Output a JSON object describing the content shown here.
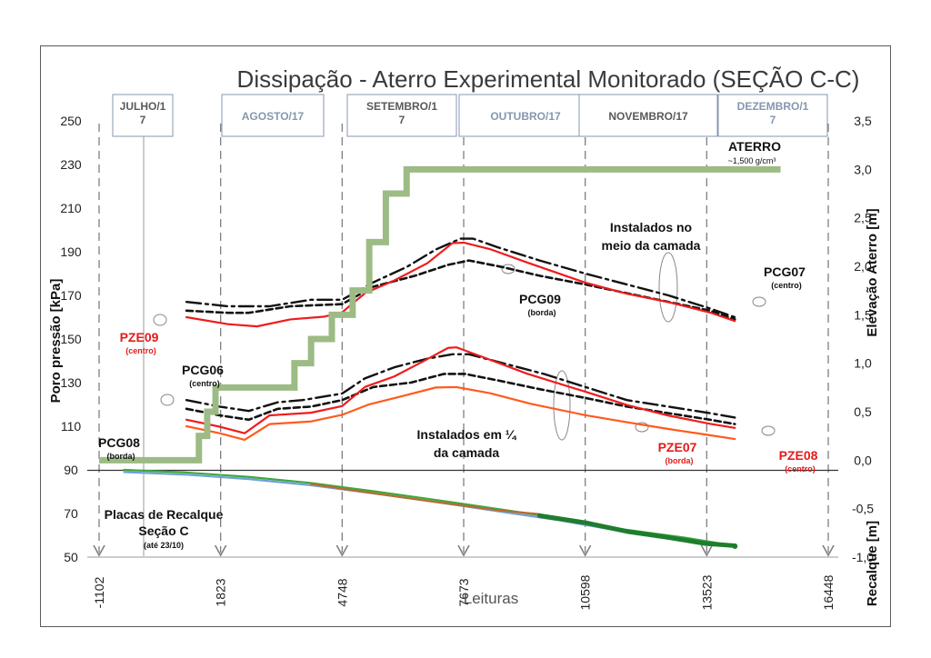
{
  "title": "Dissipação - Aterro Experimental Monitorado (SEÇÃO C-C)",
  "chart_data": {
    "type": "line",
    "title": "Dissipação - Aterro Experimental Monitorado (SEÇÃO C-C)",
    "xlabel": "Leituras",
    "ylabel_left": "Poro pressão [kPa]",
    "ylabel_right_top": "Elevação Aterro [m]",
    "ylabel_right_bottom": "Recalque [m]",
    "xlim": [
      -1102,
      16448
    ],
    "ylim_left": [
      50,
      250
    ],
    "ylim_right": [
      -1.0,
      3.5
    ],
    "x_ticks": [
      "-1102",
      "1823",
      "4748",
      "7673",
      "10598",
      "13523",
      "16448"
    ],
    "x_tick_values": [
      -1102,
      1823,
      4748,
      7673,
      10598,
      13523,
      16448
    ],
    "y_ticks_left": [
      "250",
      "230",
      "210",
      "190",
      "170",
      "150",
      "130",
      "110",
      "90",
      "70",
      "50"
    ],
    "y_ticks_left_values": [
      250,
      230,
      210,
      190,
      170,
      150,
      130,
      110,
      90,
      70,
      50
    ],
    "y_ticks_right": [
      "3,5",
      "3,0",
      "2,5",
      "2,0",
      "1,5",
      "1,0",
      "0,5",
      "0,0",
      "-0,5",
      "-1,0"
    ],
    "y_ticks_right_values": [
      3.5,
      3.0,
      2.5,
      2.0,
      1.5,
      1.0,
      0.5,
      0.0,
      -0.5,
      -1.0
    ],
    "grid": false,
    "months": [
      {
        "label": "JULHO/1\n7",
        "color": "#595959"
      },
      {
        "label": "AGOSTO/17",
        "color": "#8497b0"
      },
      {
        "label": "SETEMBRO/1\n7",
        "color": "#595959"
      },
      {
        "label": "OUTUBRO/17",
        "color": "#8497b0"
      },
      {
        "label": "NOVEMBRO/17",
        "color": "#595959"
      },
      {
        "label": "DEZEMBRO/1\n7",
        "color": "#8497b0"
      }
    ],
    "series": [
      {
        "name": "PCG07",
        "axis": "left",
        "style": "dashdot",
        "color": "#111111",
        "x": [
          1000,
          2000,
          3000,
          4000,
          4748,
          5500,
          6300,
          7000,
          7600,
          7900,
          8500,
          9500,
          10598,
          11600,
          12600,
          13600,
          14200
        ],
        "y": [
          167,
          165,
          165,
          168,
          168,
          176,
          183,
          191,
          196,
          196,
          192,
          186,
          180,
          175,
          170,
          164,
          160
        ]
      },
      {
        "name": "PCG09",
        "axis": "left",
        "style": "dashed",
        "color": "#111111",
        "x": [
          1000,
          2000,
          2500,
          3500,
          4748,
          5500,
          6500,
          7300,
          7800,
          8600,
          9500,
          10598,
          11600,
          12600,
          13600,
          14200
        ],
        "y": [
          163,
          162,
          162,
          165,
          166,
          174,
          179,
          184,
          186,
          183,
          179,
          175,
          171,
          167,
          163,
          159
        ]
      },
      {
        "name": "PZE09",
        "axis": "left",
        "style": "solid",
        "color": "#ee1c1c",
        "x": [
          1000,
          2000,
          2700,
          3500,
          4300,
          4748,
          5300,
          6000,
          6800,
          7400,
          7673,
          8300,
          9200,
          10598,
          11600,
          12600,
          13600,
          14200
        ],
        "y": [
          160,
          157,
          156,
          159,
          160,
          162,
          171,
          177,
          185,
          194,
          194,
          191,
          185,
          176,
          171,
          167,
          162,
          158
        ]
      },
      {
        "name": "PCG06",
        "axis": "left",
        "style": "dashdot",
        "color": "#111111",
        "x": [
          1000,
          1800,
          2500,
          3200,
          3800,
          4748,
          5300,
          6000,
          6800,
          7400,
          7800,
          8600,
          9600,
          10598,
          11600,
          12600,
          13600,
          14200
        ],
        "y": [
          122,
          119,
          117,
          121,
          122,
          125,
          132,
          137,
          141,
          143,
          143,
          139,
          134,
          128,
          122,
          119,
          116,
          114
        ]
      },
      {
        "name": "PCG08",
        "axis": "left",
        "style": "dashed",
        "color": "#111111",
        "x": [
          1000,
          1800,
          2500,
          3200,
          4000,
          4748,
          5500,
          6400,
          7200,
          7700,
          8500,
          9500,
          10598,
          11600,
          12600,
          13600,
          14200
        ],
        "y": [
          118,
          115,
          113,
          118,
          119,
          122,
          128,
          130,
          134,
          134,
          131,
          127,
          123,
          119,
          116,
          113,
          111
        ]
      },
      {
        "name": "PZE07",
        "axis": "left",
        "style": "solid",
        "color": "#ee1c1c",
        "x": [
          1000,
          1800,
          2400,
          3000,
          4000,
          4748,
          5300,
          6000,
          6700,
          7300,
          7500,
          8200,
          9200,
          10598,
          11600,
          12600,
          13600,
          14200
        ],
        "y": [
          113,
          110,
          107,
          115,
          116,
          119,
          128,
          133,
          140,
          146,
          146,
          141,
          134,
          126,
          120,
          115,
          111,
          109
        ]
      },
      {
        "name": "PZE08",
        "axis": "left",
        "style": "solid",
        "color": "#ff5a1f",
        "x": [
          1000,
          1800,
          2400,
          3000,
          4000,
          4748,
          5400,
          6200,
          7000,
          7500,
          8300,
          9300,
          10598,
          11600,
          12600,
          13600,
          14200
        ],
        "y": [
          110,
          107,
          104,
          111,
          112,
          115,
          120,
          124,
          128,
          128,
          125,
          120,
          115,
          112,
          109,
          106,
          104
        ]
      },
      {
        "name": "ATERRO",
        "axis": "right",
        "style": "step",
        "color": "#9cbb85",
        "x": [
          -1102,
          1000,
          1300,
          1500,
          1700,
          2200,
          3000,
          3600,
          4000,
          4500,
          5000,
          5400,
          5800,
          6300,
          15300
        ],
        "y": [
          0.0,
          0.0,
          0.25,
          0.5,
          0.75,
          0.75,
          0.75,
          1.0,
          1.25,
          1.5,
          1.75,
          2.25,
          2.75,
          3.0,
          3.0
        ]
      },
      {
        "name": "Placas de Recalque",
        "axis": "left",
        "style": "solid",
        "color": "#6fa0d8",
        "x": [
          -500,
          1000,
          2500,
          4000,
          5500,
          7000,
          8500,
          10000,
          11500,
          13000,
          14200
        ],
        "y": [
          89,
          88,
          86,
          83,
          79,
          75,
          71,
          67,
          62,
          58,
          55
        ]
      },
      {
        "name": "Placas de Recalque",
        "axis": "left",
        "style": "solid",
        "color": "#3ca83c",
        "x": [
          -500,
          1000,
          2500,
          4000,
          5500,
          7000,
          8500,
          10000,
          11500,
          13000,
          14200
        ],
        "y": [
          90,
          89,
          87,
          84,
          80,
          76,
          72,
          68,
          63,
          59,
          55
        ]
      },
      {
        "name": "Placas de Recalque",
        "axis": "left",
        "style": "solid",
        "color": "#bd6a2c",
        "x": [
          4000,
          5500,
          7000,
          8500,
          9500
        ],
        "y": [
          83.5,
          79.5,
          75.5,
          71.5,
          69.5
        ]
      },
      {
        "name": "Placas de Recalque",
        "axis": "left",
        "style": "solid",
        "color": "#1f7d2e",
        "x": [
          9500,
          10598,
          11600,
          12600,
          13500,
          14200
        ],
        "y": [
          69,
          66,
          62,
          59,
          56,
          55
        ]
      }
    ],
    "annotations": {
      "aterro_label": "ATERRO",
      "aterro_density": "~1,500 g/cm³",
      "upper_group": "Instalados no\nmeio da camada",
      "lower_group": "Instalados em ¼\nda camada",
      "placas_title": "Placas de Recalque\nSeção C",
      "placas_note": "(até 23/10)",
      "pcg07": "PCG07",
      "pcg07_sub": "(centro)",
      "pcg09": "PCG09",
      "pcg09_sub": "(borda)",
      "pze09": "PZE09",
      "pze09_sub": "(centro)",
      "pcg06": "PCG06",
      "pcg06_sub": "(centro)",
      "pcg08": "PCG08",
      "pcg08_sub": "(borda)",
      "pze07": "PZE07",
      "pze07_sub": "(borda)",
      "pze08": "PZE08",
      "pze08_sub": "(centro)"
    }
  }
}
